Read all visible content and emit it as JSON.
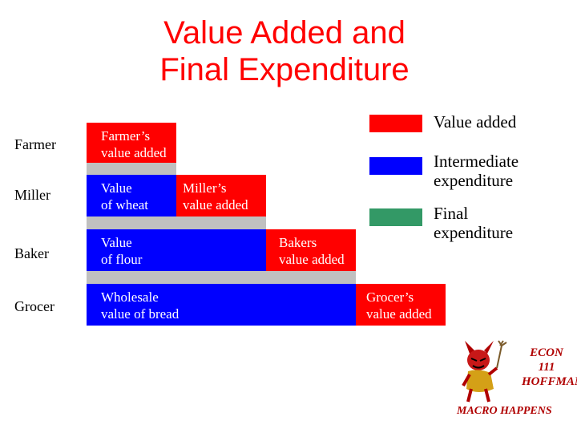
{
  "title": {
    "line1": "Value Added and",
    "line2": "Final Expenditure"
  },
  "stages": {
    "farmer": "Farmer",
    "miller": "Miller",
    "baker": "Baker",
    "grocer": "Grocer"
  },
  "boxes": {
    "farmer_value_added": "Farmer’s\nvalue added",
    "value_of_wheat": "Value\nof wheat",
    "miller_value_added": "Miller’s\nvalue added",
    "value_of_flour": "Value\nof flour",
    "bakers_value_added": "Bakers\nvalue added",
    "wholesale_value_of_bread": "Wholesale\nvalue of bread",
    "grocer_value_added": "Grocer’s\nvalue added"
  },
  "legend": {
    "value_added": "Value added",
    "intermediate_expenditure": "Intermediate\nexpenditure",
    "final_expenditure": "Final\nexpenditure"
  },
  "colors": {
    "value_added": "#ff0000",
    "intermediate_expenditure": "#0000ff",
    "final_expenditure": "#339966",
    "title": "#ff0000",
    "separator": "#c0c0c0"
  },
  "logo": {
    "line1": "ECON",
    "line2": "111",
    "line3": "HOFFMAN",
    "tagline": "MACRO HAPPENS"
  }
}
